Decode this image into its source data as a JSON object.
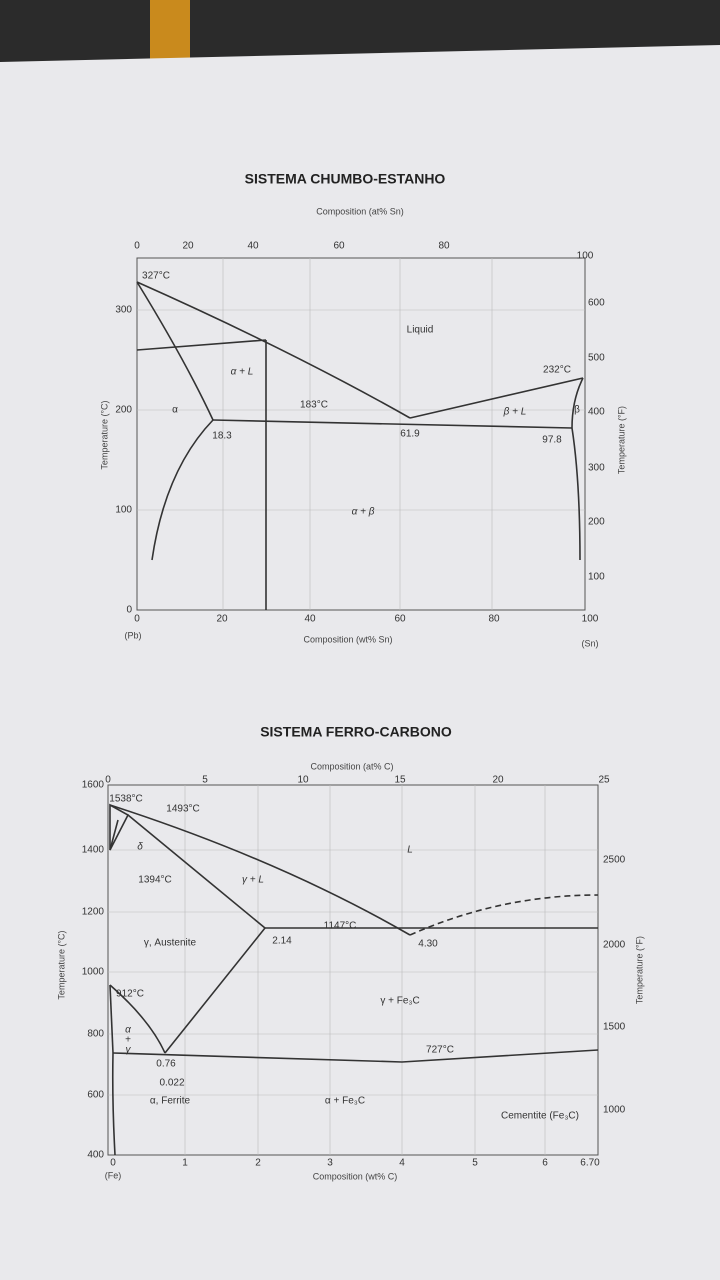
{
  "diagram1": {
    "title": "SISTEMA CHUMBO-ESTANHO",
    "top_axis_label": "Composition (at% Sn)",
    "top_ticks": [
      "0",
      "20",
      "40",
      "60",
      "80",
      "100"
    ],
    "left_axis_label": "Temperature (°C)",
    "left_ticks": [
      "0",
      "100",
      "200",
      "300"
    ],
    "right_axis_label": "Temperature (°F)",
    "right_ticks": [
      "100",
      "200",
      "300",
      "400",
      "500",
      "600"
    ],
    "bottom_axis_label": "Composition (wt% Sn)",
    "bottom_ticks": [
      "0",
      "20",
      "40",
      "60",
      "80",
      "100"
    ],
    "left_end": "(Pb)",
    "right_end": "(Sn)",
    "labels": [
      "327°C",
      "Liquid",
      "α + L",
      "α",
      "183°C",
      "232°C",
      "β + L",
      "β",
      "18.3",
      "61.9",
      "97.8",
      "α + β"
    ]
  },
  "diagram2": {
    "title": "SISTEMA FERRO-CARBONO",
    "top_axis_label": "Composition (at% C)",
    "top_ticks": [
      "0",
      "5",
      "10",
      "15",
      "20",
      "25"
    ],
    "left_axis_label": "Temperature (°C)",
    "left_ticks": [
      "1600",
      "1400",
      "1200",
      "1000",
      "800",
      "600",
      "400"
    ],
    "right_axis_label": "Temperature (°F)",
    "right_ticks": [
      "2500",
      "2000",
      "1500",
      "1000"
    ],
    "bottom_axis_label": "Composition (wt% C)",
    "bottom_ticks": [
      "0",
      "1",
      "2",
      "3",
      "4",
      "5",
      "6",
      "6.70"
    ],
    "left_end": "(Fe)",
    "labels": [
      "1538°C",
      "1493°C",
      "δ",
      "1394°C",
      "γ + L",
      "L",
      "1147°C",
      "γ, Austenite",
      "2.14",
      "4.30",
      "912°C",
      "γ + Fe₃C",
      "727°C",
      "α",
      "+",
      "γ",
      "0.76",
      "0.022",
      "α, Ferrite",
      "α + Fe₃C",
      "Cementite (Fe₃C)"
    ]
  }
}
